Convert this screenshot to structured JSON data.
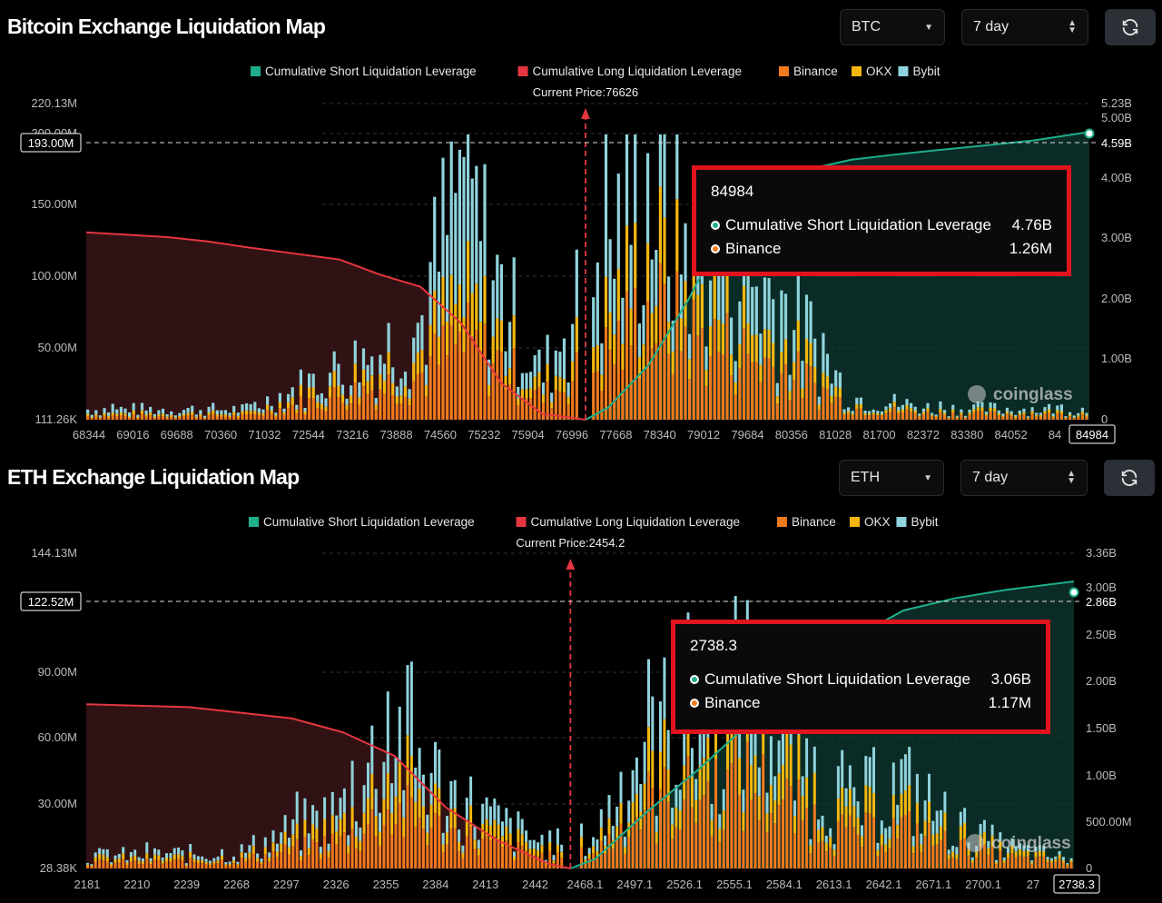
{
  "colors": {
    "short": "#1fae8c",
    "long": "#e5363f",
    "binance": "#f07a1c",
    "okx": "#f5b70f",
    "bybit": "#8fd3dc",
    "tooltip_border": "#e0141e"
  },
  "legend": [
    {
      "name": "Cumulative Short Liquidation Leverage",
      "color": "#1fae8c"
    },
    {
      "name": "Cumulative Long Liquidation Leverage",
      "color": "#e5363f"
    },
    {
      "name": "Binance",
      "color": "#f07a1c"
    },
    {
      "name": "OKX",
      "color": "#f5b70f"
    },
    {
      "name": "Bybit",
      "color": "#8fd3dc"
    }
  ],
  "watermark": "coinglass",
  "icons": {
    "select": "chevron-down-icon",
    "stepper": "updown-icon",
    "refresh": "refresh-icon"
  },
  "chart_data": [
    {
      "type": "bar",
      "title": "Bitcoin Exchange Liquidation Map",
      "coin_select": "BTC",
      "range_select": "7 day",
      "current_price_label": "Current Price:76626",
      "current_price": 76626,
      "x_ticks": [
        "68344",
        "69016",
        "69688",
        "70360",
        "71032",
        "72544",
        "73216",
        "73888",
        "74560",
        "75232",
        "75904",
        "76996",
        "77668",
        "78340",
        "79012",
        "79684",
        "80356",
        "81028",
        "81700",
        "82372",
        "83380",
        "84052",
        "84"
      ],
      "x_end_label": "84984",
      "y_left_ticks": [
        "220.13M",
        "150.00M",
        "100.00M",
        "50.00M",
        "111.26K"
      ],
      "y_left_partial": "200.00M",
      "y_left_hover": "193.00M",
      "y_right_ticks": [
        "5.23B",
        "5.00B",
        "4.00B",
        "3.00B",
        "2.00B",
        "1.00B",
        "0"
      ],
      "y_right_hover": "4.59B",
      "ylim_left": [
        0,
        220130000
      ],
      "ylim_right": [
        0,
        5230000000
      ],
      "x_range": [
        68344,
        84984
      ],
      "series": [
        {
          "name": "Cumulative Short Liquidation Leverage",
          "points": [
            [
              76626,
              0
            ],
            [
              77000,
              0.2
            ],
            [
              77668,
              0.9
            ],
            [
              78340,
              2.0
            ],
            [
              79012,
              3.3
            ],
            [
              79684,
              3.9
            ],
            [
              80356,
              4.15
            ],
            [
              81028,
              4.3
            ],
            [
              81700,
              4.38
            ],
            [
              82372,
              4.45
            ],
            [
              83380,
              4.55
            ],
            [
              84052,
              4.62
            ],
            [
              84984,
              4.76
            ]
          ]
        },
        {
          "name": "Cumulative Long Liquidation Leverage",
          "points": [
            [
              68344,
              3.1
            ],
            [
              69688,
              3.02
            ],
            [
              70360,
              2.95
            ],
            [
              71032,
              2.85
            ],
            [
              72544,
              2.65
            ],
            [
              73216,
              2.4
            ],
            [
              73888,
              2.2
            ],
            [
              74560,
              1.6
            ],
            [
              75232,
              0.6
            ],
            [
              75904,
              0.1
            ],
            [
              76626,
              0
            ]
          ]
        }
      ],
      "exchange_profile": {
        "note": "approximate stacked bar heights (millions) sampled along x",
        "binance": [
          [
            68344,
            3
          ],
          [
            71032,
            3
          ],
          [
            72544,
            20
          ],
          [
            73216,
            28
          ],
          [
            73888,
            38
          ],
          [
            74560,
            65
          ],
          [
            75232,
            48
          ],
          [
            75904,
            18
          ],
          [
            76996,
            55
          ],
          [
            77668,
            92
          ],
          [
            78340,
            74
          ],
          [
            79012,
            60
          ],
          [
            79684,
            48
          ],
          [
            80356,
            32
          ],
          [
            81028,
            10
          ],
          [
            82372,
            5
          ],
          [
            84984,
            4
          ]
        ],
        "okx": [
          [
            68344,
            2
          ],
          [
            71032,
            2
          ],
          [
            72544,
            10
          ],
          [
            73216,
            14
          ],
          [
            73888,
            18
          ],
          [
            74560,
            35
          ],
          [
            75232,
            22
          ],
          [
            75904,
            8
          ],
          [
            76996,
            30
          ],
          [
            77668,
            45
          ],
          [
            78340,
            36
          ],
          [
            79012,
            28
          ],
          [
            79684,
            22
          ],
          [
            80356,
            14
          ],
          [
            81028,
            4
          ],
          [
            82372,
            2
          ],
          [
            84984,
            2
          ]
        ],
        "bybit": [
          [
            68344,
            4
          ],
          [
            71032,
            4
          ],
          [
            72544,
            12
          ],
          [
            73216,
            18
          ],
          [
            73888,
            25
          ],
          [
            74560,
            100
          ],
          [
            75232,
            40
          ],
          [
            75904,
            12
          ],
          [
            76996,
            60
          ],
          [
            77668,
            70
          ],
          [
            78340,
            45
          ],
          [
            79012,
            50
          ],
          [
            79684,
            40
          ],
          [
            80356,
            25
          ],
          [
            81028,
            6
          ],
          [
            82372,
            3
          ],
          [
            84984,
            3
          ]
        ]
      },
      "tooltip": {
        "price": "84984",
        "short_label": "Cumulative Short Liquidation Leverage",
        "short_value": "4.76B",
        "binance_label": "Binance",
        "binance_value": "1.26M"
      }
    },
    {
      "type": "bar",
      "title": "ETH Exchange Liquidation Map",
      "coin_select": "ETH",
      "range_select": "7 day",
      "current_price_label": "Current Price:2454.2",
      "current_price": 2454.2,
      "x_ticks": [
        "2181",
        "2210",
        "2239",
        "2268",
        "2297",
        "2326",
        "2355",
        "2384",
        "2413",
        "2442",
        "2468.1",
        "2497.1",
        "2526.1",
        "2555.1",
        "2584.1",
        "2613.1",
        "2642.1",
        "2671.1",
        "2700.1",
        "27"
      ],
      "x_end_label": "2738.3",
      "y_left_ticks": [
        "144.13M",
        "90.00M",
        "60.00M",
        "30.00M",
        "28.38K"
      ],
      "y_left_hover": "122.52M",
      "y_right_ticks": [
        "3.36B",
        "3.00B",
        "2.50B",
        "2.00B",
        "1.50B",
        "1.00B",
        "500.00M",
        "0"
      ],
      "y_right_hover": "2.86B",
      "ylim_left": [
        0,
        144130000
      ],
      "ylim_right": [
        0,
        3360000000
      ],
      "x_range": [
        2181,
        2738.3
      ],
      "series": [
        {
          "name": "Cumulative Short Liquidation Leverage",
          "points": [
            [
              2454.2,
              0
            ],
            [
              2468.1,
              0.1
            ],
            [
              2497.1,
              0.6
            ],
            [
              2526.1,
              1.05
            ],
            [
              2555.1,
              1.55
            ],
            [
              2584.1,
              2.0
            ],
            [
              2613.1,
              2.45
            ],
            [
              2642.1,
              2.75
            ],
            [
              2671.1,
              2.88
            ],
            [
              2700.1,
              2.97
            ],
            [
              2738.3,
              3.06
            ]
          ]
        },
        {
          "name": "Cumulative Long Liquidation Leverage",
          "points": [
            [
              2181,
              1.75
            ],
            [
              2239,
              1.72
            ],
            [
              2297,
              1.6
            ],
            [
              2326,
              1.45
            ],
            [
              2355,
              1.2
            ],
            [
              2384,
              0.65
            ],
            [
              2413,
              0.3
            ],
            [
              2442,
              0.05
            ],
            [
              2454.2,
              0
            ]
          ]
        }
      ],
      "exchange_profile": {
        "note": "approximate stacked bar heights (millions) sampled along x",
        "binance": [
          [
            2181,
            3
          ],
          [
            2268,
            4
          ],
          [
            2326,
            15
          ],
          [
            2355,
            32
          ],
          [
            2384,
            20
          ],
          [
            2413,
            12
          ],
          [
            2442,
            6
          ],
          [
            2468.1,
            8
          ],
          [
            2497.1,
            35
          ],
          [
            2526.1,
            40
          ],
          [
            2555.1,
            48
          ],
          [
            2584.1,
            30
          ],
          [
            2613.1,
            18
          ],
          [
            2642.1,
            22
          ],
          [
            2671.1,
            12
          ],
          [
            2700.1,
            6
          ],
          [
            2738.3,
            3
          ]
        ],
        "okx": [
          [
            2181,
            2
          ],
          [
            2268,
            2
          ],
          [
            2326,
            8
          ],
          [
            2355,
            20
          ],
          [
            2384,
            10
          ],
          [
            2413,
            6
          ],
          [
            2442,
            3
          ],
          [
            2468.1,
            4
          ],
          [
            2497.1,
            16
          ],
          [
            2526.1,
            20
          ],
          [
            2555.1,
            24
          ],
          [
            2584.1,
            15
          ],
          [
            2613.1,
            9
          ],
          [
            2642.1,
            10
          ],
          [
            2671.1,
            6
          ],
          [
            2700.1,
            3
          ],
          [
            2738.3,
            1
          ]
        ],
        "bybit": [
          [
            2181,
            2
          ],
          [
            2268,
            3
          ],
          [
            2326,
            10
          ],
          [
            2355,
            28
          ],
          [
            2384,
            14
          ],
          [
            2413,
            8
          ],
          [
            2442,
            4
          ],
          [
            2468.1,
            5
          ],
          [
            2497.1,
            25
          ],
          [
            2526.1,
            18
          ],
          [
            2555.1,
            30
          ],
          [
            2584.1,
            12
          ],
          [
            2613.1,
            8
          ],
          [
            2642.1,
            15
          ],
          [
            2671.1,
            6
          ],
          [
            2700.1,
            3
          ],
          [
            2738.3,
            1
          ]
        ]
      },
      "tooltip": {
        "price": "2738.3",
        "short_label": "Cumulative Short Liquidation Leverage",
        "short_value": "3.06B",
        "binance_label": "Binance",
        "binance_value": "1.17M"
      }
    }
  ]
}
